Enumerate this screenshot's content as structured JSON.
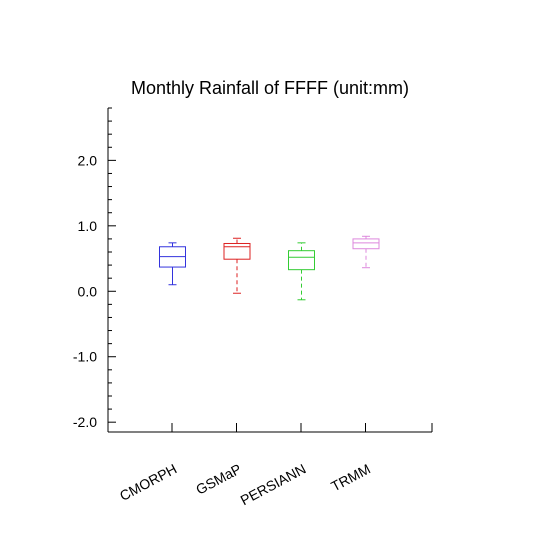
{
  "chart_data": {
    "type": "boxplot",
    "title": "Monthly Rainfall of FFFF (unit:mm)",
    "xlabel": "",
    "ylabel": "",
    "ylim": [
      -2.15,
      2.8
    ],
    "yticks": [
      -2.0,
      -1.0,
      0.0,
      1.0,
      2.0
    ],
    "ytick_labels": [
      "-2.0",
      "-1.0",
      "0.0",
      "1.0",
      "2.0"
    ],
    "categories": [
      "CMORPH",
      "GSMaP",
      "PERSIANN",
      "TRMM"
    ],
    "series": [
      {
        "category": "CMORPH",
        "color": "#3333dd",
        "dashed_whisker": false,
        "min": 0.1,
        "q1": 0.37,
        "median": 0.53,
        "q3": 0.68,
        "max": 0.74
      },
      {
        "category": "GSMaP",
        "color": "#dd2222",
        "dashed_whisker": true,
        "min": -0.03,
        "q1": 0.49,
        "median": 0.68,
        "q3": 0.73,
        "max": 0.81
      },
      {
        "category": "PERSIANN",
        "color": "#33cc33",
        "dashed_whisker": true,
        "min": -0.13,
        "q1": 0.33,
        "median": 0.52,
        "q3": 0.62,
        "max": 0.74
      },
      {
        "category": "TRMM",
        "color": "#dd88dd",
        "dashed_whisker": true,
        "min": 0.36,
        "q1": 0.65,
        "median": 0.74,
        "q3": 0.8,
        "max": 0.84
      }
    ],
    "grid": false,
    "legend": "none"
  }
}
